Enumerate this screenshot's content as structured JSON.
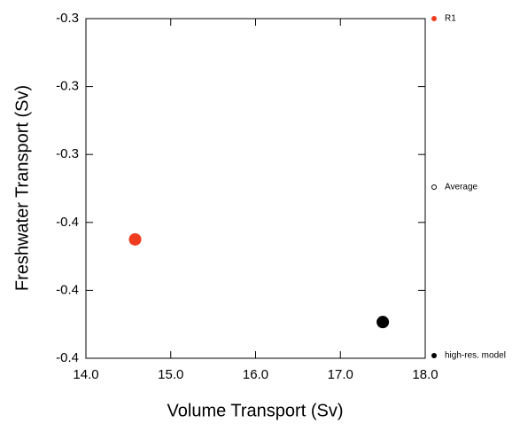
{
  "chart_data": {
    "type": "scatter",
    "xlabel": "Volume Transport (Sv)",
    "ylabel": "Freshwater Transport (Sv)",
    "xlim": [
      14,
      18
    ],
    "xticks": [
      {
        "value": 14,
        "label": "14.0"
      },
      {
        "value": 15,
        "label": "15.0"
      },
      {
        "value": 16,
        "label": "16.0"
      },
      {
        "value": 17,
        "label": "17.0"
      },
      {
        "value": 18,
        "label": "18.0"
      }
    ],
    "ylim": [
      -0.41,
      -0.26
    ],
    "yticks": [
      {
        "value": -0.26,
        "label": "-0.3"
      },
      {
        "value": -0.29,
        "label": "-0.3"
      },
      {
        "value": -0.32,
        "label": "-0.3"
      },
      {
        "value": -0.35,
        "label": "-0.4"
      },
      {
        "value": -0.38,
        "label": "-0.4"
      },
      {
        "value": -0.41,
        "label": "-0.4"
      }
    ],
    "series": [
      {
        "name": "R1",
        "color": "#f03c1e",
        "x": [
          14.58
        ],
        "values": [
          -0.3575
        ]
      },
      {
        "name": "Average",
        "color": "#000000",
        "filled": false,
        "x": [],
        "values": []
      },
      {
        "name": "high-res. model",
        "color": "#000000",
        "x": [
          17.5
        ],
        "values": [
          -0.394
        ]
      }
    ]
  }
}
